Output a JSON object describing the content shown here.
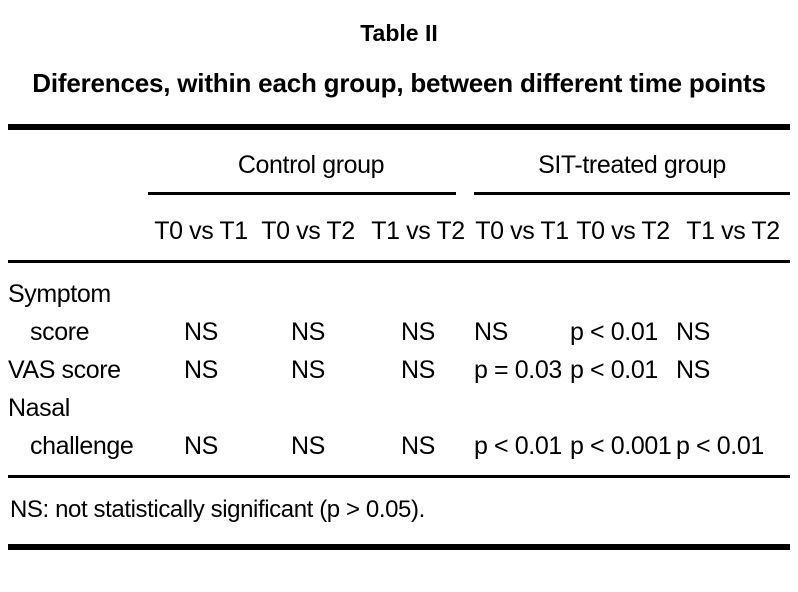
{
  "colors": {
    "background": "#ffffff",
    "text": "#000000",
    "rule": "#000000"
  },
  "table": {
    "label": "Table II",
    "title": "Diferences, within each group, between different time points",
    "groups": [
      {
        "label": "Control group",
        "columns": [
          "T0 vs T1",
          "T0 vs T2",
          "T1 vs T2"
        ]
      },
      {
        "label": "SIT-treated group",
        "columns": [
          "T0 vs T1",
          "T0 vs T2",
          "T1 vs T2"
        ]
      }
    ],
    "rows": [
      {
        "label_line1": "Symptom",
        "label_line2": "score",
        "values": [
          "NS",
          "NS",
          "NS",
          "NS",
          "p < 0.01",
          "NS"
        ]
      },
      {
        "label_line1": "VAS score",
        "label_line2": "",
        "values": [
          "NS",
          "NS",
          "NS",
          "p = 0.03",
          "p < 0.01",
          "NS"
        ]
      },
      {
        "label_line1": "Nasal",
        "label_line2": "challenge",
        "values": [
          "NS",
          "NS",
          "NS",
          "p < 0.01",
          "p < 0.001",
          "p < 0.01"
        ]
      }
    ],
    "footnote": "NS: not statistically significant (p > 0.05)."
  }
}
